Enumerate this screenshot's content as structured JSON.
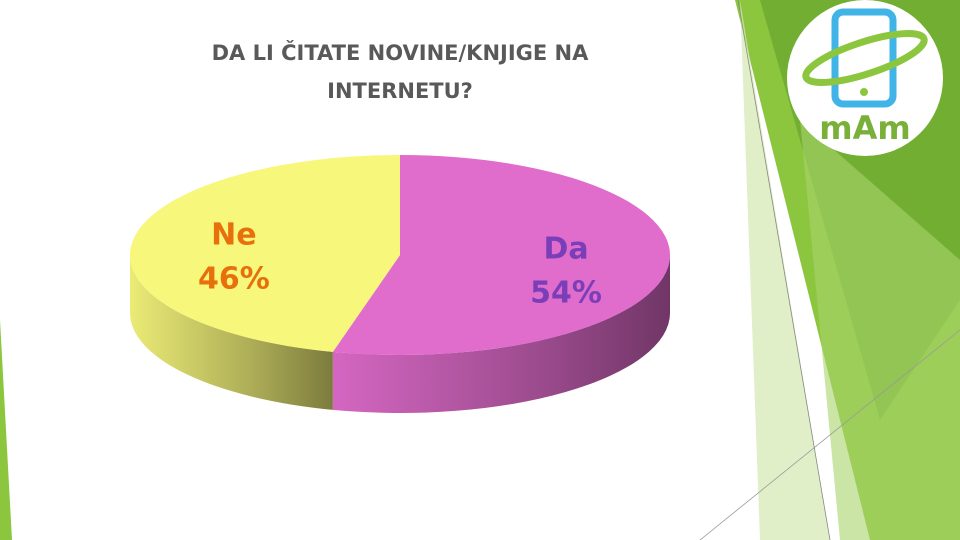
{
  "chart_data": {
    "type": "pie",
    "title": "DA LI ČITATE NOVINE/KNJIGE NA INTERNETU?",
    "categories": [
      "Da",
      "Ne"
    ],
    "values": [
      54,
      46
    ],
    "value_labels": [
      "54%",
      "46%"
    ],
    "colors": [
      "#e06ccc",
      "#f7f77c"
    ],
    "label_colors": [
      "#7a3fb8",
      "#e8700c"
    ],
    "start_angle": 0
  },
  "logo": {
    "text": "mAm"
  }
}
